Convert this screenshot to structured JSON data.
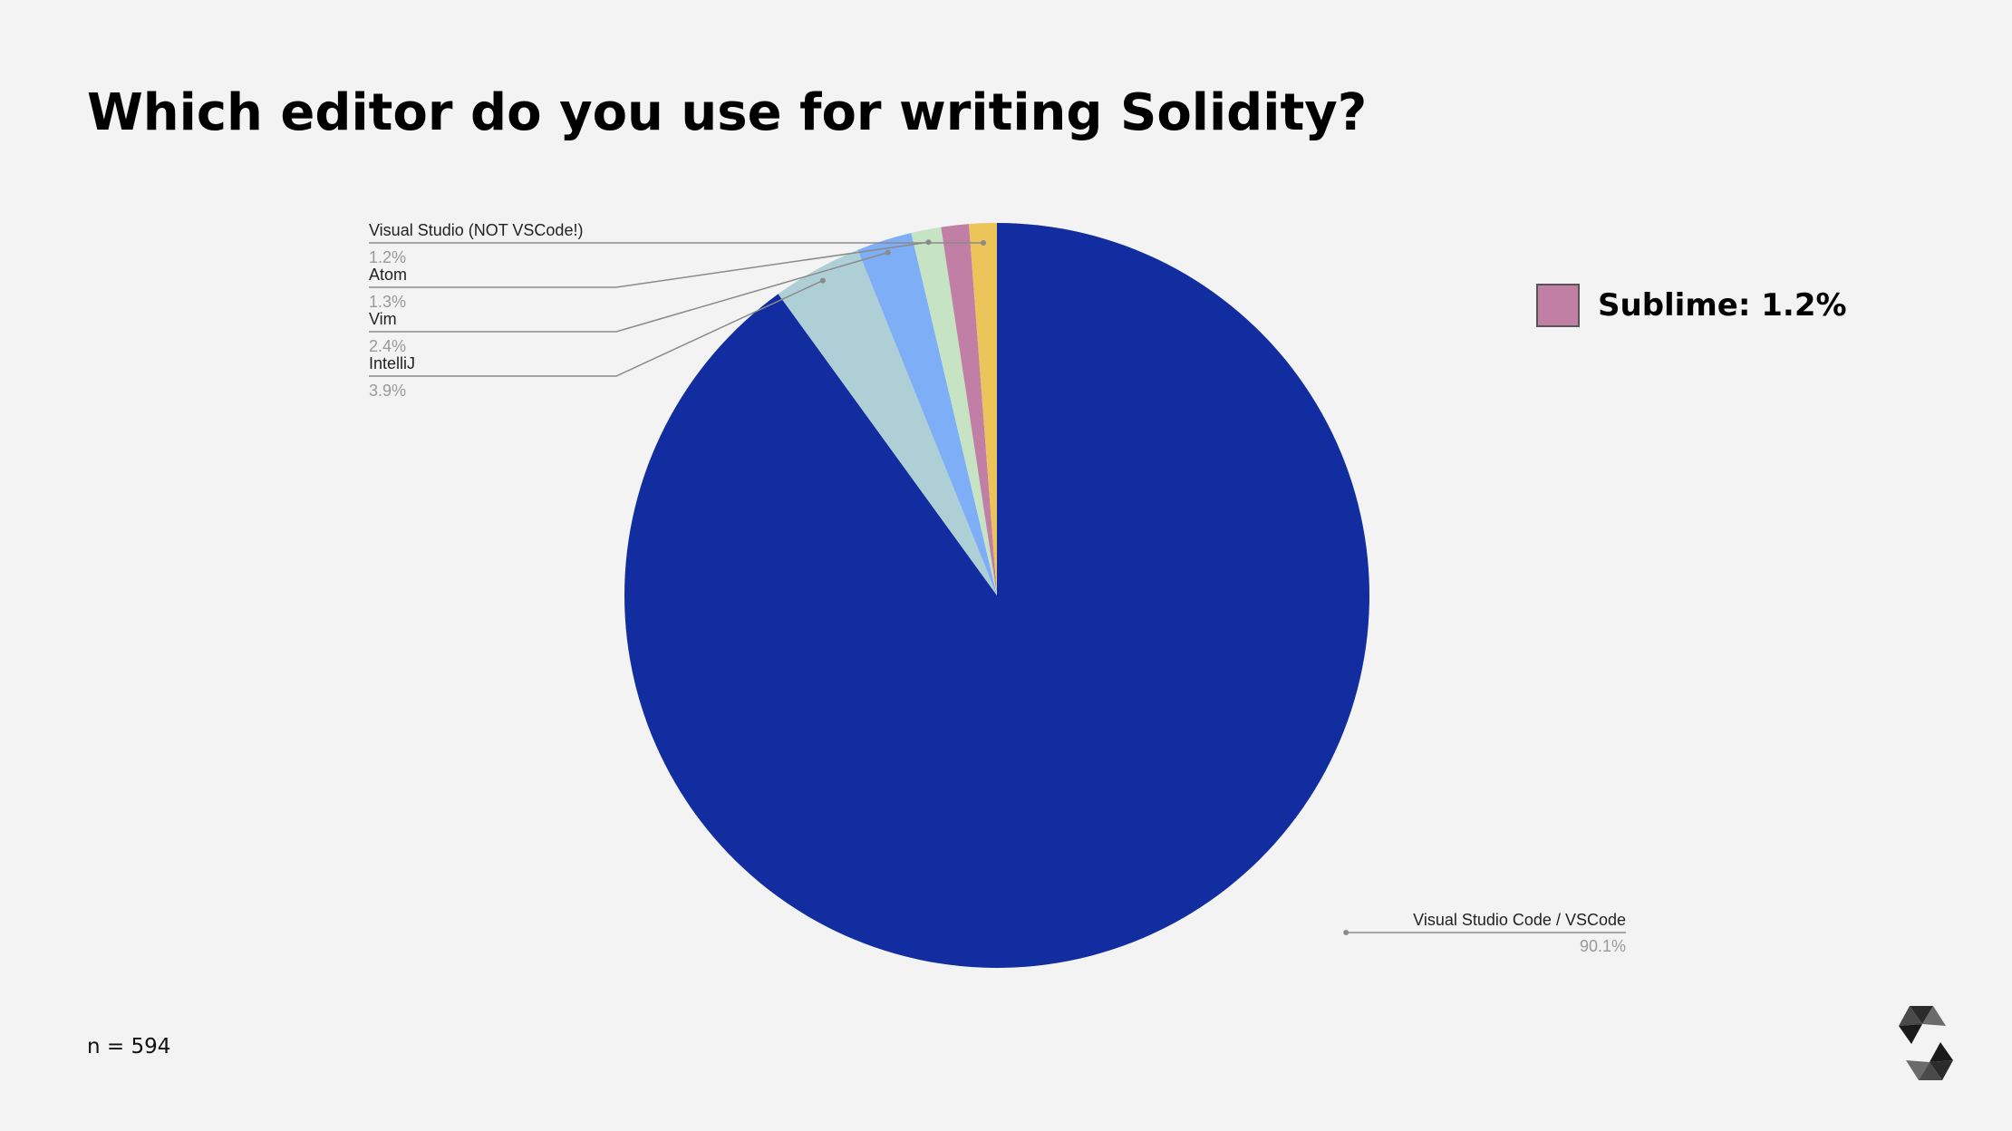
{
  "slide": {
    "title": "Which editor do you use for writing Solidity?",
    "sample_size": "n = 594",
    "legend_label": "Sublime: 1.2%"
  },
  "colors": {
    "background": "#f3f3f3",
    "vscode": "#122da0",
    "intellij": "#aecfd6",
    "vim": "#7eaef5",
    "atom": "#c6e3c4",
    "sublime": "#c17fa5",
    "visual_studio": "#ecc55a",
    "leader_line": "#8a8a8a"
  },
  "icons": {
    "logo": "solidity-logo-icon"
  },
  "chart_data": {
    "type": "pie",
    "title": "Which editor do you use for writing Solidity?",
    "start_angle_deg": 0,
    "direction": "clockwise",
    "slices": [
      {
        "label": "Visual Studio Code / VSCode",
        "value": 90.1,
        "display": "90.1%",
        "color": "#122da0",
        "label_side": "right"
      },
      {
        "label": "IntelliJ",
        "value": 3.9,
        "display": "3.9%",
        "color": "#aecfd6",
        "label_side": "left"
      },
      {
        "label": "Vim",
        "value": 2.4,
        "display": "2.4%",
        "color": "#7eaef5",
        "label_side": "left"
      },
      {
        "label": "Atom",
        "value": 1.3,
        "display": "1.3%",
        "color": "#c6e3c4",
        "label_side": "left"
      },
      {
        "label": "Sublime",
        "value": 1.2,
        "display": "1.2%",
        "color": "#c17fa5",
        "label_side": "none"
      },
      {
        "label": "Visual Studio (NOT VSCode!)",
        "value": 1.2,
        "display": "1.2%",
        "color": "#ecc55a",
        "label_side": "left"
      }
    ],
    "highlighted_slice": {
      "label": "Sublime",
      "value": 1.2,
      "display": "Sublime: 1.2%"
    },
    "legend_position": "right"
  }
}
